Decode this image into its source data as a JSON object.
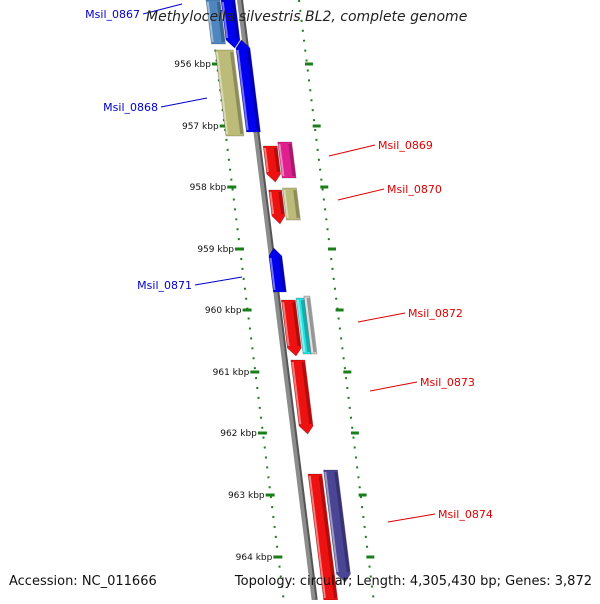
{
  "title": "Methylocella silvestris BL2, complete genome",
  "footer": {
    "accession": "Accession: NC_011666",
    "topology": "Topology: circular; Length: 4,305,430 bp; Genes: 3,872"
  },
  "ticks": [
    "956 kbp",
    "957 kbp",
    "958 kbp",
    "959 kbp",
    "960 kbp",
    "961 kbp",
    "962 kbp",
    "963 kbp",
    "964 kbp"
  ],
  "genes": [
    {
      "label": "Msil_0867",
      "strand": "minus",
      "color": "#0000ee"
    },
    {
      "label": "Msil_0868",
      "strand": "minus",
      "color": "#0000ee"
    },
    {
      "label": "Msil_0869",
      "strand": "plus",
      "color": "#ee1111"
    },
    {
      "label": "Msil_0870",
      "strand": "plus",
      "color": "#ee1111"
    },
    {
      "label": "Msil_0871",
      "strand": "minus",
      "color": "#0000ee"
    },
    {
      "label": "Msil_0872",
      "strand": "plus",
      "color": "#ee1111"
    },
    {
      "label": "Msil_0873",
      "strand": "plus",
      "color": "#ee1111"
    },
    {
      "label": "Msil_0874",
      "strand": "plus",
      "color": "#ee1111"
    }
  ],
  "colors": {
    "backbone": "#8c8c8c",
    "tick_dots": "#1a7f1a",
    "minus_label": "#0000cc",
    "plus_label": "#dd0000",
    "olive": "#bdbb7a",
    "magenta": "#e0208f",
    "cyan": "#22e3e3",
    "navy": "#4b4596",
    "steel": "#4f86c0",
    "gray": "#c8c8c8"
  }
}
